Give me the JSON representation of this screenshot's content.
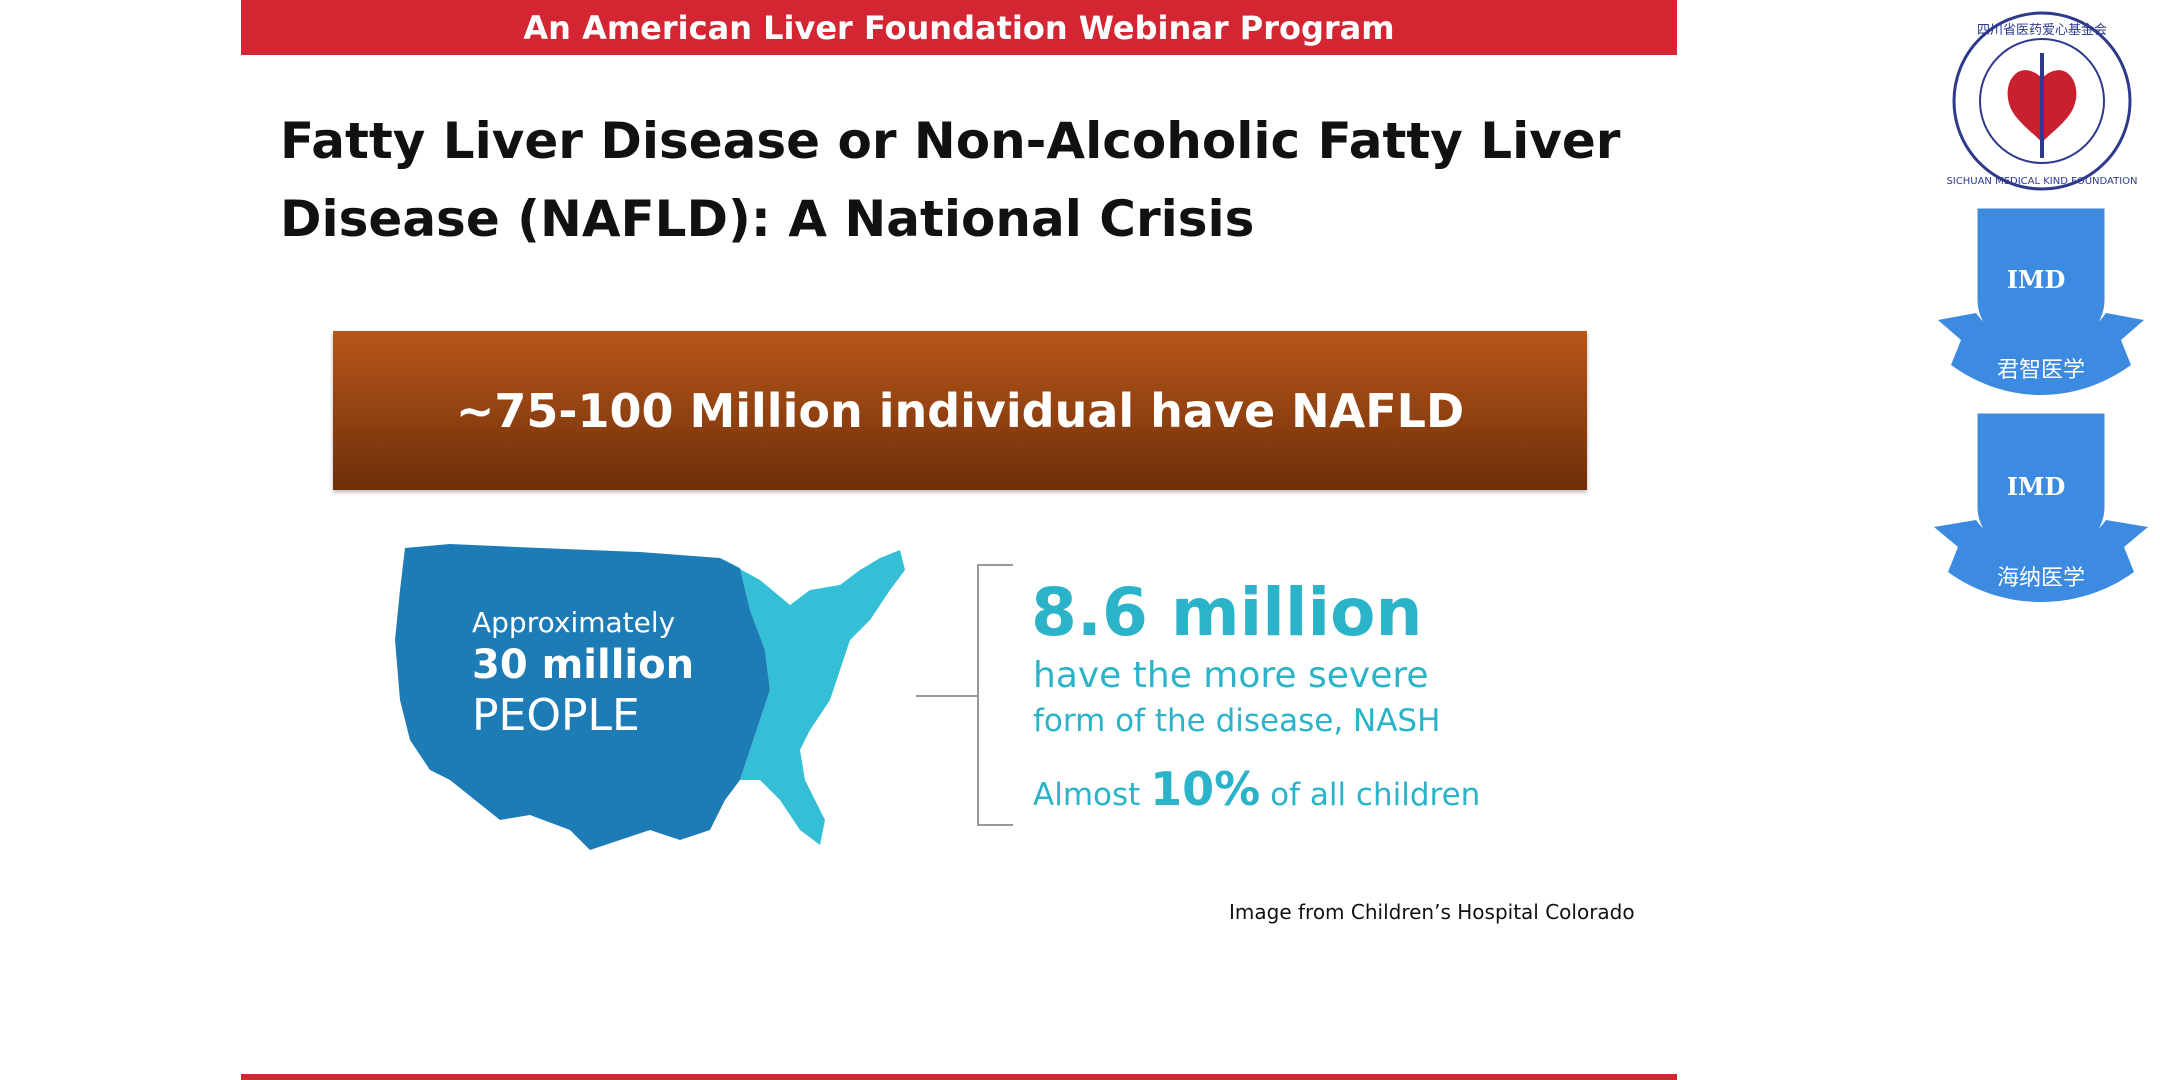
{
  "header": {
    "banner": "An American Liver Foundation Webinar Program"
  },
  "slide": {
    "title_lines": [
      "Fatty Liver Disease or Non-Alcoholic Fatty Liver",
      "Disease (NAFLD): A National Crisis"
    ],
    "stat_box": "~75-100 Million individual have NAFLD",
    "map_label": [
      "Approximately",
      "30 million",
      "PEOPLE"
    ],
    "nash": {
      "headline": "8.6 million",
      "lines": [
        "have the more severe",
        "form of the disease, NASH"
      ]
    },
    "children": {
      "before": "Almost",
      "highlight": "10%",
      "after": "of all children"
    },
    "caption": "Image from Children’s Hospital Colorado"
  },
  "logos": [
    {
      "ring_cn": "四川省医药爱心基金会",
      "ring_en": "SICHUAN MEDICAL KIND FOUNDATION"
    },
    {
      "mark": "IMD",
      "name": "君智医学"
    },
    {
      "mark": "IMD",
      "name": "海纳医学"
    }
  ]
}
